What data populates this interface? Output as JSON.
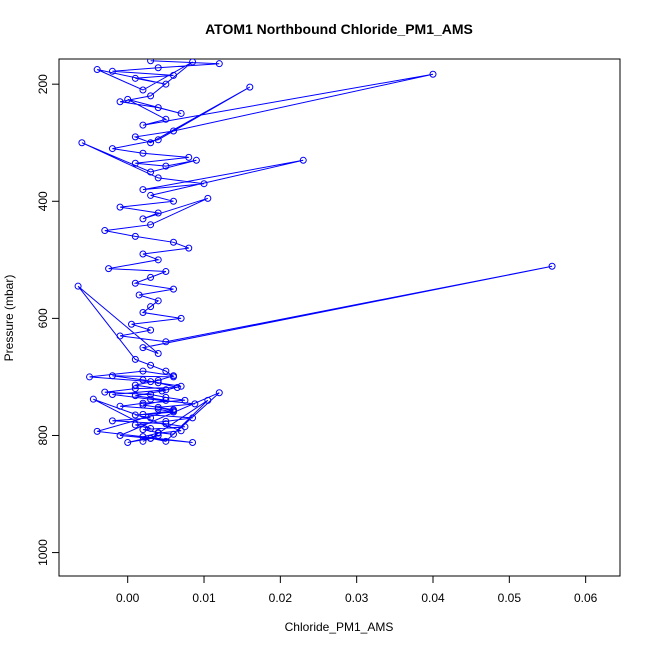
{
  "chart_data": {
    "type": "scatter",
    "title": "ATOM1 Northbound Chloride_PM1_AMS",
    "xlabel": "Chloride_PM1_AMS",
    "ylabel": "Pressure (mbar)",
    "xlim": [
      -0.009,
      0.0645
    ],
    "ylim": [
      1040,
      157
    ],
    "y_reversed": true,
    "x_ticks": [
      {
        "value": 0.0,
        "label": "0.00"
      },
      {
        "value": 0.01,
        "label": "0.01"
      },
      {
        "value": 0.02,
        "label": "0.02"
      },
      {
        "value": 0.03,
        "label": "0.03"
      },
      {
        "value": 0.04,
        "label": "0.04"
      },
      {
        "value": 0.05,
        "label": "0.05"
      },
      {
        "value": 0.06,
        "label": "0.06"
      }
    ],
    "y_ticks": [
      {
        "value": 200,
        "label": "200"
      },
      {
        "value": 400,
        "label": "400"
      },
      {
        "value": 600,
        "label": "600"
      },
      {
        "value": 800,
        "label": "800"
      },
      {
        "value": 1000,
        "label": "1000"
      }
    ],
    "grid": false,
    "legend": "none",
    "series_color": "#0000ff",
    "marker": "open-circle",
    "connected": true,
    "series": [
      {
        "x": [
          0.003,
          0.012,
          0.004,
          -0.002,
          0.006,
          0.001,
          0.005,
          -0.004,
          0.002,
          0.0085,
          0.003,
          -0.001,
          0.004,
          0.007,
          0.0,
          0.005,
          0.002,
          0.04,
          0.006,
          0.001,
          0.003,
          0.016,
          0.004,
          -0.002,
          0.002,
          0.008,
          0.001,
          0.005,
          0.009,
          0.003,
          -0.006,
          0.004,
          0.01,
          0.002,
          0.023,
          0.003,
          0.006,
          -0.001,
          0.004,
          0.002,
          0.0105,
          0.003,
          -0.003,
          0.001,
          0.006,
          0.008,
          0.002,
          0.004,
          -0.0025,
          0.005,
          0.003,
          0.001,
          0.006,
          0.0015,
          0.004,
          0.003,
          0.002,
          0.007,
          0.0005,
          0.003,
          -0.001,
          0.005,
          0.0556,
          0.002,
          0.004,
          -0.0065,
          0.001,
          0.003,
          0.005,
          0.006,
          -0.002,
          0.002,
          0.004,
          0.0065,
          0.001,
          -0.003,
          0.003,
          0.005,
          0.0075,
          0.002,
          -0.001,
          0.004,
          0.006,
          0.001,
          0.003,
          -0.002,
          0.005,
          0.0075,
          0.002,
          0.004,
          0.006,
          0.012,
          -0.001,
          0.003,
          0.0105,
          0.005,
          0.002,
          0.004,
          0.007,
          -0.0045,
          0.003,
          0.001,
          0.005,
          0.0085,
          0.002,
          0.006,
          0.004,
          0.0088,
          0.003,
          -0.002,
          0.005,
          0.001,
          0.004,
          0.006,
          0.002,
          -0.005,
          0.003,
          0.007,
          0.0045,
          0.001,
          0.005,
          0.002,
          0.006,
          -0.004,
          0.0085,
          0.003,
          0.0,
          0.004,
          0.002
        ],
        "y": [
          160,
          165,
          172,
          178,
          185,
          190,
          200,
          175,
          210,
          162,
          220,
          230,
          240,
          250,
          226,
          260,
          270,
          183,
          280,
          290,
          300,
          205,
          295,
          310,
          318,
          325,
          335,
          340,
          330,
          350,
          300,
          360,
          370,
          380,
          330,
          390,
          400,
          410,
          420,
          430,
          395,
          440,
          450,
          460,
          470,
          480,
          490,
          500,
          515,
          520,
          530,
          540,
          550,
          560,
          570,
          580,
          590,
          600,
          610,
          620,
          630,
          640,
          511,
          650,
          660,
          545,
          670,
          680,
          690,
          700,
          698,
          705,
          710,
          718,
          720,
          726,
          730,
          735,
          740,
          745,
          750,
          755,
          760,
          765,
          770,
          775,
          780,
          785,
          790,
          795,
          798,
          727,
          800,
          805,
          740,
          810,
          802,
          796,
          792,
          738,
          788,
          782,
          776,
          770,
          764,
          758,
          752,
          746,
          738,
          730,
          722,
          714,
          706,
          698,
          690,
          700,
          708,
          716,
          724,
          732,
          740,
          748,
          756,
          793,
          812,
          805,
          812,
          800,
          810
        ]
      }
    ]
  }
}
